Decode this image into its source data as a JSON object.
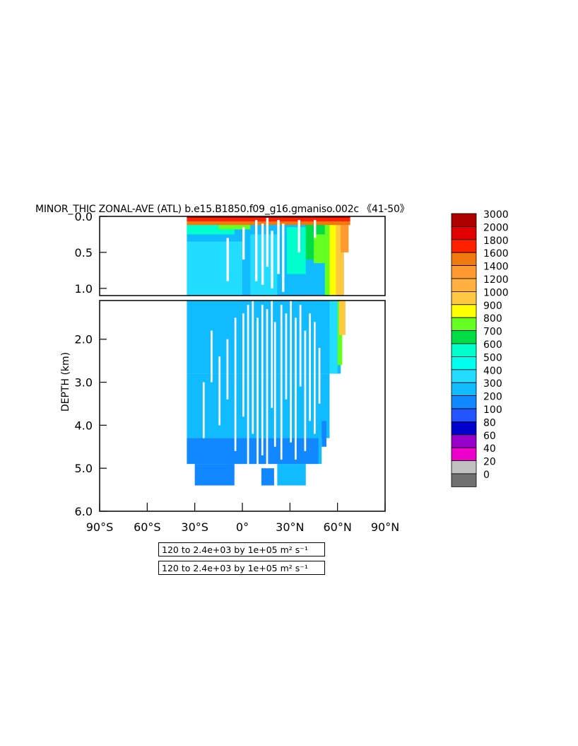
{
  "chart_data": {
    "type": "heatmap",
    "title": "MINOR_THIC ZONAL-AVE (ATL) b.e15.B1850.f09_g16.gmaniso.002c 《41-50》",
    "ylabel": "DEPTH (km)",
    "xlabel": "",
    "x_ticks": [
      "90°S",
      "60°S",
      "30°S",
      "0°",
      "30°N",
      "60°N",
      "90°N"
    ],
    "y_ticks_upper": [
      "0.0",
      "0.5",
      "1.0"
    ],
    "y_ticks_lower": [
      "2.0",
      "3.0",
      "4.0",
      "5.0",
      "6.0"
    ],
    "xlim": [
      -90,
      90
    ],
    "ylim_upper": [
      0,
      1.1
    ],
    "ylim_lower": [
      1.1,
      6.0
    ],
    "y_reversed": true,
    "levels": [
      "3000",
      "2000",
      "1800",
      "1600",
      "1400",
      "1200",
      "1000",
      "900",
      "800",
      "700",
      "600",
      "500",
      "400",
      "300",
      "200",
      "100",
      "80",
      "60",
      "40",
      "20",
      "0"
    ],
    "level_colors": [
      "#b00000",
      "#e00000",
      "#ff2000",
      "#f07a10",
      "#ff9a30",
      "#ffb040",
      "#ffc840",
      "#ffff00",
      "#66ff22",
      "#00dd44",
      "#00ffcc",
      "#00ffee",
      "#22ddff",
      "#11bbff",
      "#1188ff",
      "#2255ff",
      "#0000cc",
      "#9900cc",
      "#ee00cc",
      "#c0c0c0",
      "#707070"
    ],
    "data_extent": {
      "lat_min": -35,
      "lat_max": 65,
      "depth_max_km": 5.4
    },
    "caption_1": "120 to 2.4e+03 by 1e+05 m² s⁻¹",
    "caption_2": "120 to 2.4e+03 by 1e+05 m² s⁻¹"
  }
}
